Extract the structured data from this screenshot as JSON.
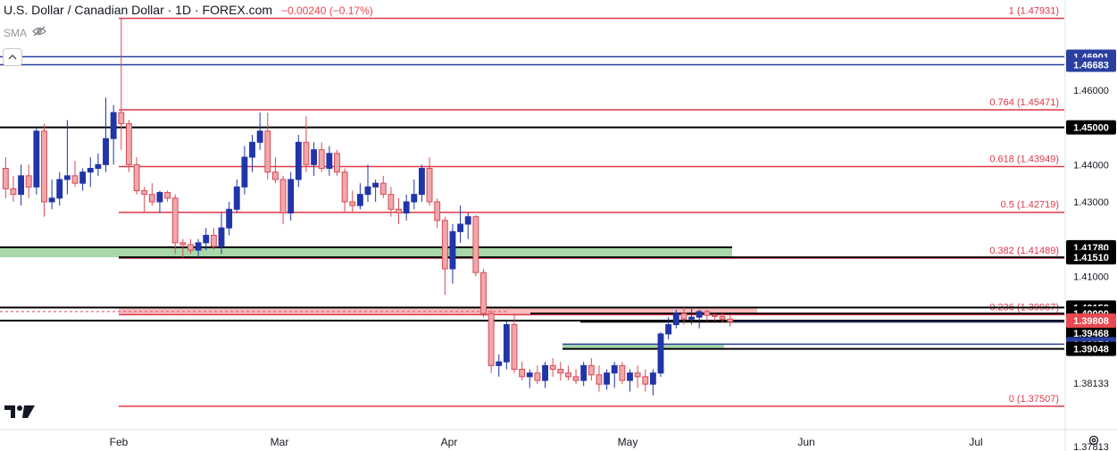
{
  "header": {
    "title": "U.S. Dollar / Canadian Dollar · 1D · FOREX.com",
    "change": "−0.00240 (−0.17%)",
    "indicator": "SMA"
  },
  "colors": {
    "bull": "#2035a8",
    "bear": "#f0a8ab",
    "bear_border": "#d84a55",
    "fib": "#e0394a",
    "support": "#000000",
    "blue_line": "#2a3fa0",
    "green_zone": "#9fd4a0",
    "red_zone": "#f5b5b8",
    "current_price": "#e84850",
    "axis_text": "#131722"
  },
  "chart_data": {
    "type": "candlestick",
    "symbol": "USD/CAD",
    "timeframe": "1D",
    "ylim": [
      1.3781,
      1.4802
    ],
    "x_labels": [
      "Feb",
      "Mar",
      "Apr",
      "May",
      "Jun",
      "Jul"
    ],
    "y_ticks": [
      "1.46000",
      "1.44000",
      "1.43000",
      "1.41000",
      "1.38133"
    ],
    "fib_levels": [
      {
        "ratio": "1",
        "value": 1.47931,
        "label": "1 (1.47931)"
      },
      {
        "ratio": "0.764",
        "value": 1.45471,
        "label": "0.764 (1.45471)"
      },
      {
        "ratio": "0.618",
        "value": 1.43949,
        "label": "0.618 (1.43949)"
      },
      {
        "ratio": "0.5",
        "value": 1.42719,
        "label": "0.5 (1.42719)"
      },
      {
        "ratio": "0.382",
        "value": 1.41489,
        "label": "0.382 (1.41489)"
      },
      {
        "ratio": "0.236",
        "value": 1.39967,
        "label": "0.236 (1.39967)"
      },
      {
        "ratio": "0",
        "value": 1.37507,
        "label": "0 (1.37507)"
      }
    ],
    "horizontal_levels": [
      {
        "value": 1.46901,
        "label": "1.46901",
        "color": "blue"
      },
      {
        "value": 1.46683,
        "label": "1.46683",
        "color": "blue"
      },
      {
        "value": 1.45,
        "label": "1.45000",
        "color": "black"
      },
      {
        "value": 1.4178,
        "label": "1.41780",
        "color": "black"
      },
      {
        "value": 1.4151,
        "label": "1.41510",
        "color": "black"
      },
      {
        "value": 1.40158,
        "label": "1.40158",
        "color": "black"
      },
      {
        "value": 1.4,
        "label": "1.40000",
        "color": "black"
      },
      {
        "value": 1.39779,
        "label": "1.39779",
        "color": "black"
      },
      {
        "value": 1.39468,
        "label": "1.39468",
        "color": "black"
      },
      {
        "value": 1.39174,
        "label": "1.39174",
        "color": "blue"
      },
      {
        "value": 1.39048,
        "label": "1.39048",
        "color": "black"
      }
    ],
    "current_price": {
      "value": 1.39808,
      "label": "1.39808"
    },
    "bottom_partial_label": "1.37813",
    "candles": [
      {
        "o": 1.439,
        "h": 1.442,
        "l": 1.431,
        "c": 1.4335
      },
      {
        "o": 1.4335,
        "h": 1.437,
        "l": 1.43,
        "c": 1.432
      },
      {
        "o": 1.432,
        "h": 1.44,
        "l": 1.429,
        "c": 1.437
      },
      {
        "o": 1.437,
        "h": 1.44,
        "l": 1.431,
        "c": 1.434
      },
      {
        "o": 1.434,
        "h": 1.45,
        "l": 1.432,
        "c": 1.449
      },
      {
        "o": 1.449,
        "h": 1.451,
        "l": 1.426,
        "c": 1.43
      },
      {
        "o": 1.43,
        "h": 1.436,
        "l": 1.428,
        "c": 1.431
      },
      {
        "o": 1.431,
        "h": 1.438,
        "l": 1.429,
        "c": 1.436
      },
      {
        "o": 1.436,
        "h": 1.452,
        "l": 1.432,
        "c": 1.437
      },
      {
        "o": 1.437,
        "h": 1.441,
        "l": 1.434,
        "c": 1.435
      },
      {
        "o": 1.435,
        "h": 1.439,
        "l": 1.433,
        "c": 1.438
      },
      {
        "o": 1.438,
        "h": 1.442,
        "l": 1.434,
        "c": 1.439
      },
      {
        "o": 1.439,
        "h": 1.443,
        "l": 1.437,
        "c": 1.44
      },
      {
        "o": 1.44,
        "h": 1.458,
        "l": 1.438,
        "c": 1.447
      },
      {
        "o": 1.447,
        "h": 1.456,
        "l": 1.44,
        "c": 1.454
      },
      {
        "o": 1.454,
        "h": 1.4793,
        "l": 1.444,
        "c": 1.451
      },
      {
        "o": 1.451,
        "h": 1.452,
        "l": 1.438,
        "c": 1.44
      },
      {
        "o": 1.44,
        "h": 1.442,
        "l": 1.432,
        "c": 1.433
      },
      {
        "o": 1.433,
        "h": 1.434,
        "l": 1.427,
        "c": 1.432
      },
      {
        "o": 1.432,
        "h": 1.435,
        "l": 1.429,
        "c": 1.43
      },
      {
        "o": 1.43,
        "h": 1.433,
        "l": 1.427,
        "c": 1.4325
      },
      {
        "o": 1.4325,
        "h": 1.433,
        "l": 1.43,
        "c": 1.431
      },
      {
        "o": 1.431,
        "h": 1.432,
        "l": 1.416,
        "c": 1.419
      },
      {
        "o": 1.419,
        "h": 1.42,
        "l": 1.415,
        "c": 1.4185
      },
      {
        "o": 1.4185,
        "h": 1.42,
        "l": 1.416,
        "c": 1.417
      },
      {
        "o": 1.417,
        "h": 1.42,
        "l": 1.415,
        "c": 1.419
      },
      {
        "o": 1.419,
        "h": 1.423,
        "l": 1.417,
        "c": 1.421
      },
      {
        "o": 1.421,
        "h": 1.423,
        "l": 1.417,
        "c": 1.418
      },
      {
        "o": 1.418,
        "h": 1.427,
        "l": 1.416,
        "c": 1.423
      },
      {
        "o": 1.423,
        "h": 1.43,
        "l": 1.421,
        "c": 1.428
      },
      {
        "o": 1.428,
        "h": 1.436,
        "l": 1.427,
        "c": 1.434
      },
      {
        "o": 1.434,
        "h": 1.445,
        "l": 1.432,
        "c": 1.442
      },
      {
        "o": 1.442,
        "h": 1.448,
        "l": 1.438,
        "c": 1.446
      },
      {
        "o": 1.446,
        "h": 1.454,
        "l": 1.444,
        "c": 1.449
      },
      {
        "o": 1.449,
        "h": 1.454,
        "l": 1.436,
        "c": 1.438
      },
      {
        "o": 1.438,
        "h": 1.442,
        "l": 1.435,
        "c": 1.436
      },
      {
        "o": 1.436,
        "h": 1.437,
        "l": 1.424,
        "c": 1.427
      },
      {
        "o": 1.427,
        "h": 1.438,
        "l": 1.425,
        "c": 1.436
      },
      {
        "o": 1.436,
        "h": 1.448,
        "l": 1.434,
        "c": 1.446
      },
      {
        "o": 1.446,
        "h": 1.453,
        "l": 1.438,
        "c": 1.44
      },
      {
        "o": 1.44,
        "h": 1.446,
        "l": 1.437,
        "c": 1.444
      },
      {
        "o": 1.444,
        "h": 1.446,
        "l": 1.438,
        "c": 1.439
      },
      {
        "o": 1.439,
        "h": 1.445,
        "l": 1.437,
        "c": 1.443
      },
      {
        "o": 1.443,
        "h": 1.444,
        "l": 1.437,
        "c": 1.438
      },
      {
        "o": 1.438,
        "h": 1.439,
        "l": 1.427,
        "c": 1.43
      },
      {
        "o": 1.43,
        "h": 1.433,
        "l": 1.427,
        "c": 1.429
      },
      {
        "o": 1.429,
        "h": 1.435,
        "l": 1.428,
        "c": 1.432
      },
      {
        "o": 1.432,
        "h": 1.44,
        "l": 1.43,
        "c": 1.434
      },
      {
        "o": 1.434,
        "h": 1.436,
        "l": 1.43,
        "c": 1.435
      },
      {
        "o": 1.435,
        "h": 1.437,
        "l": 1.431,
        "c": 1.432
      },
      {
        "o": 1.432,
        "h": 1.434,
        "l": 1.426,
        "c": 1.428
      },
      {
        "o": 1.428,
        "h": 1.431,
        "l": 1.424,
        "c": 1.427
      },
      {
        "o": 1.427,
        "h": 1.432,
        "l": 1.425,
        "c": 1.43
      },
      {
        "o": 1.43,
        "h": 1.436,
        "l": 1.428,
        "c": 1.432
      },
      {
        "o": 1.432,
        "h": 1.44,
        "l": 1.43,
        "c": 1.439
      },
      {
        "o": 1.439,
        "h": 1.442,
        "l": 1.429,
        "c": 1.43
      },
      {
        "o": 1.43,
        "h": 1.431,
        "l": 1.423,
        "c": 1.425
      },
      {
        "o": 1.425,
        "h": 1.426,
        "l": 1.405,
        "c": 1.412
      },
      {
        "o": 1.412,
        "h": 1.424,
        "l": 1.408,
        "c": 1.422
      },
      {
        "o": 1.422,
        "h": 1.429,
        "l": 1.419,
        "c": 1.424
      },
      {
        "o": 1.424,
        "h": 1.427,
        "l": 1.42,
        "c": 1.426
      },
      {
        "o": 1.426,
        "h": 1.4265,
        "l": 1.41,
        "c": 1.411
      },
      {
        "o": 1.411,
        "h": 1.412,
        "l": 1.399,
        "c": 1.4
      },
      {
        "o": 1.4,
        "h": 1.401,
        "l": 1.384,
        "c": 1.386
      },
      {
        "o": 1.386,
        "h": 1.389,
        "l": 1.383,
        "c": 1.387
      },
      {
        "o": 1.387,
        "h": 1.398,
        "l": 1.385,
        "c": 1.397
      },
      {
        "o": 1.397,
        "h": 1.4,
        "l": 1.384,
        "c": 1.385
      },
      {
        "o": 1.385,
        "h": 1.387,
        "l": 1.382,
        "c": 1.383
      },
      {
        "o": 1.383,
        "h": 1.385,
        "l": 1.38,
        "c": 1.384
      },
      {
        "o": 1.384,
        "h": 1.386,
        "l": 1.381,
        "c": 1.382
      },
      {
        "o": 1.382,
        "h": 1.387,
        "l": 1.38,
        "c": 1.386
      },
      {
        "o": 1.386,
        "h": 1.388,
        "l": 1.383,
        "c": 1.385
      },
      {
        "o": 1.385,
        "h": 1.387,
        "l": 1.382,
        "c": 1.384
      },
      {
        "o": 1.384,
        "h": 1.386,
        "l": 1.382,
        "c": 1.383
      },
      {
        "o": 1.383,
        "h": 1.385,
        "l": 1.381,
        "c": 1.382
      },
      {
        "o": 1.382,
        "h": 1.387,
        "l": 1.3805,
        "c": 1.386
      },
      {
        "o": 1.386,
        "h": 1.388,
        "l": 1.382,
        "c": 1.3835
      },
      {
        "o": 1.3835,
        "h": 1.386,
        "l": 1.379,
        "c": 1.381
      },
      {
        "o": 1.381,
        "h": 1.385,
        "l": 1.3795,
        "c": 1.384
      },
      {
        "o": 1.384,
        "h": 1.387,
        "l": 1.38,
        "c": 1.386
      },
      {
        "o": 1.386,
        "h": 1.387,
        "l": 1.381,
        "c": 1.382
      },
      {
        "o": 1.382,
        "h": 1.385,
        "l": 1.379,
        "c": 1.384
      },
      {
        "o": 1.384,
        "h": 1.386,
        "l": 1.38,
        "c": 1.383
      },
      {
        "o": 1.383,
        "h": 1.385,
        "l": 1.379,
        "c": 1.381
      },
      {
        "o": 1.381,
        "h": 1.385,
        "l": 1.378,
        "c": 1.384
      },
      {
        "o": 1.384,
        "h": 1.395,
        "l": 1.383,
        "c": 1.3945
      },
      {
        "o": 1.3945,
        "h": 1.399,
        "l": 1.393,
        "c": 1.397
      },
      {
        "o": 1.397,
        "h": 1.401,
        "l": 1.396,
        "c": 1.4
      },
      {
        "o": 1.4,
        "h": 1.4016,
        "l": 1.397,
        "c": 1.3985
      },
      {
        "o": 1.3985,
        "h": 1.4016,
        "l": 1.397,
        "c": 1.399
      },
      {
        "o": 1.399,
        "h": 1.401,
        "l": 1.396,
        "c": 1.4005
      },
      {
        "o": 1.4005,
        "h": 1.401,
        "l": 1.398,
        "c": 1.3995
      },
      {
        "o": 1.3995,
        "h": 1.4,
        "l": 1.398,
        "c": 1.3992
      },
      {
        "o": 1.3992,
        "h": 1.4005,
        "l": 1.3975,
        "c": 1.3985
      },
      {
        "o": 1.3985,
        "h": 1.3998,
        "l": 1.3965,
        "c": 1.3978
      }
    ]
  }
}
